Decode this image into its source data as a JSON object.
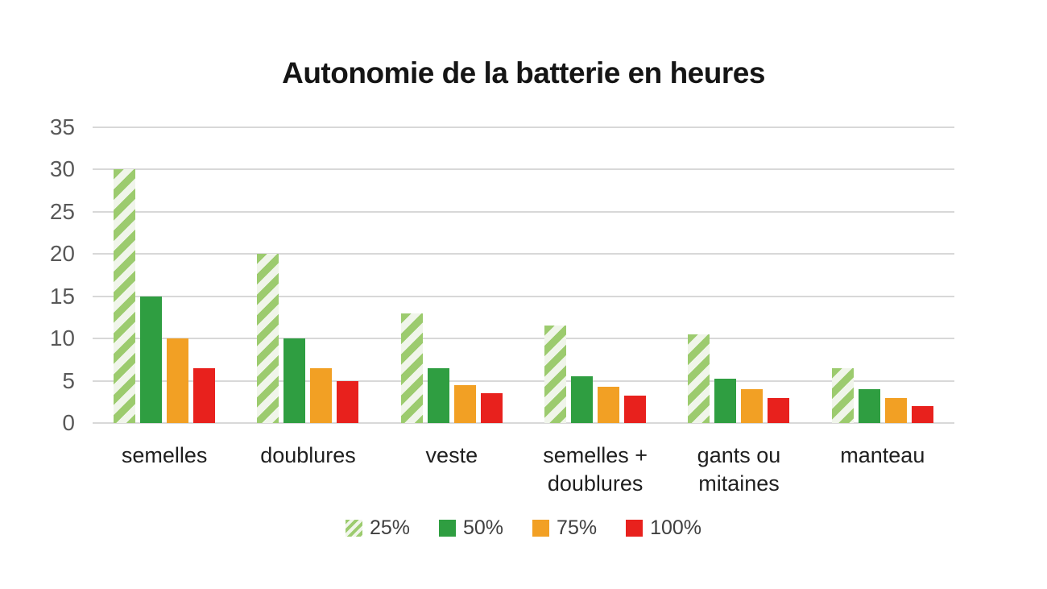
{
  "chart_data": {
    "type": "bar",
    "title": "Autonomie de la batterie en heures",
    "categories": [
      "semelles",
      "doublures",
      "veste",
      "semelles +\ndoublures",
      "gants ou\nmitaines",
      "manteau"
    ],
    "series": [
      {
        "name": "25%",
        "pattern": "hatch",
        "color": "#9ccb6e",
        "values": [
          30,
          20,
          13,
          11.5,
          10.5,
          6.5
        ]
      },
      {
        "name": "50%",
        "pattern": "solid",
        "color": "#2f9e41",
        "values": [
          15,
          10,
          6.5,
          5.5,
          5.25,
          4
        ]
      },
      {
        "name": "75%",
        "pattern": "solid",
        "color": "#f2a024",
        "values": [
          10,
          6.5,
          4.5,
          4.25,
          4,
          3
        ]
      },
      {
        "name": "100%",
        "pattern": "solid",
        "color": "#e8211d",
        "values": [
          6.5,
          5,
          3.5,
          3.25,
          3,
          2
        ]
      }
    ],
    "ylabel": "",
    "xlabel": "",
    "ylim": [
      0,
      35
    ],
    "yticks": [
      0,
      5,
      10,
      15,
      20,
      25,
      30,
      35
    ],
    "grid": "horizontal",
    "legend_position": "bottom",
    "colors": {
      "gridline": "#d8d8d8",
      "ytick_text": "#595959",
      "category_text": "#1f1f1f",
      "title_text": "#151515",
      "hatch_stripe": "#9ccb6e",
      "hatch_background": "#f0f5ea"
    }
  }
}
